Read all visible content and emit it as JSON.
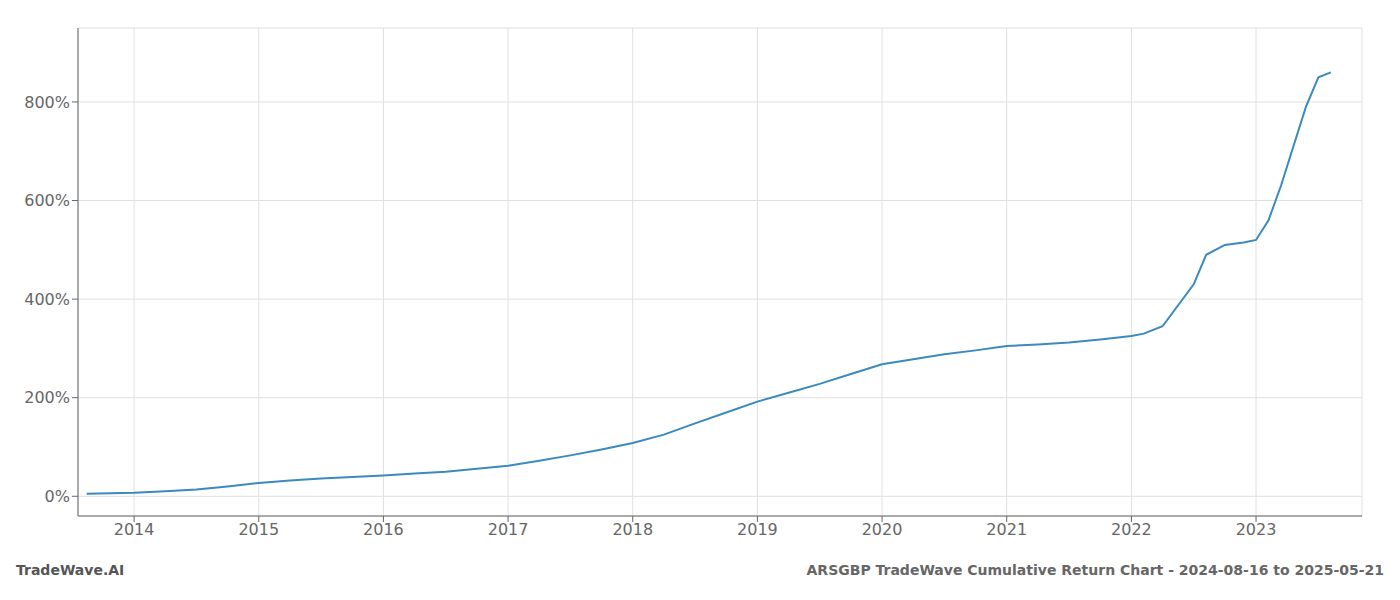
{
  "chart_data": {
    "type": "line",
    "title": "ARSGBP TradeWave Cumulative Return Chart - 2024-08-16 to 2025-05-21",
    "annotations": [
      "TradeWave.AI"
    ],
    "x": [
      2013.62,
      2014.0,
      2014.25,
      2014.5,
      2014.75,
      2015.0,
      2015.25,
      2015.5,
      2015.75,
      2016.0,
      2016.25,
      2016.5,
      2016.75,
      2017.0,
      2017.25,
      2017.5,
      2017.75,
      2018.0,
      2018.25,
      2018.5,
      2018.75,
      2019.0,
      2019.25,
      2019.5,
      2019.75,
      2020.0,
      2020.25,
      2020.5,
      2020.75,
      2021.0,
      2021.25,
      2021.5,
      2021.75,
      2022.0,
      2022.1,
      2022.25,
      2022.5,
      2022.6,
      2022.75,
      2022.9,
      2023.0,
      2023.1,
      2023.2,
      2023.3,
      2023.4,
      2023.5,
      2023.6
    ],
    "values": [
      5,
      7,
      10,
      14,
      20,
      27,
      32,
      36,
      39,
      42,
      46,
      50,
      56,
      62,
      72,
      83,
      95,
      108,
      125,
      148,
      170,
      192,
      210,
      228,
      248,
      268,
      278,
      288,
      296,
      305,
      308,
      312,
      318,
      325,
      330,
      345,
      430,
      490,
      510,
      515,
      520,
      560,
      630,
      710,
      790,
      850,
      860
    ],
    "color": "#3a8abf",
    "xlim": [
      2013.55,
      2023.85
    ],
    "xticks": [
      2014,
      2015,
      2016,
      2017,
      2018,
      2019,
      2020,
      2021,
      2022,
      2023
    ],
    "ylim": [
      -40,
      950
    ],
    "yticks": [
      {
        "value": 0,
        "label": "0%"
      },
      {
        "value": 200,
        "label": "200%"
      },
      {
        "value": 400,
        "label": "400%"
      },
      {
        "value": 600,
        "label": "600%"
      },
      {
        "value": 800,
        "label": "800%"
      }
    ],
    "grid": true
  }
}
